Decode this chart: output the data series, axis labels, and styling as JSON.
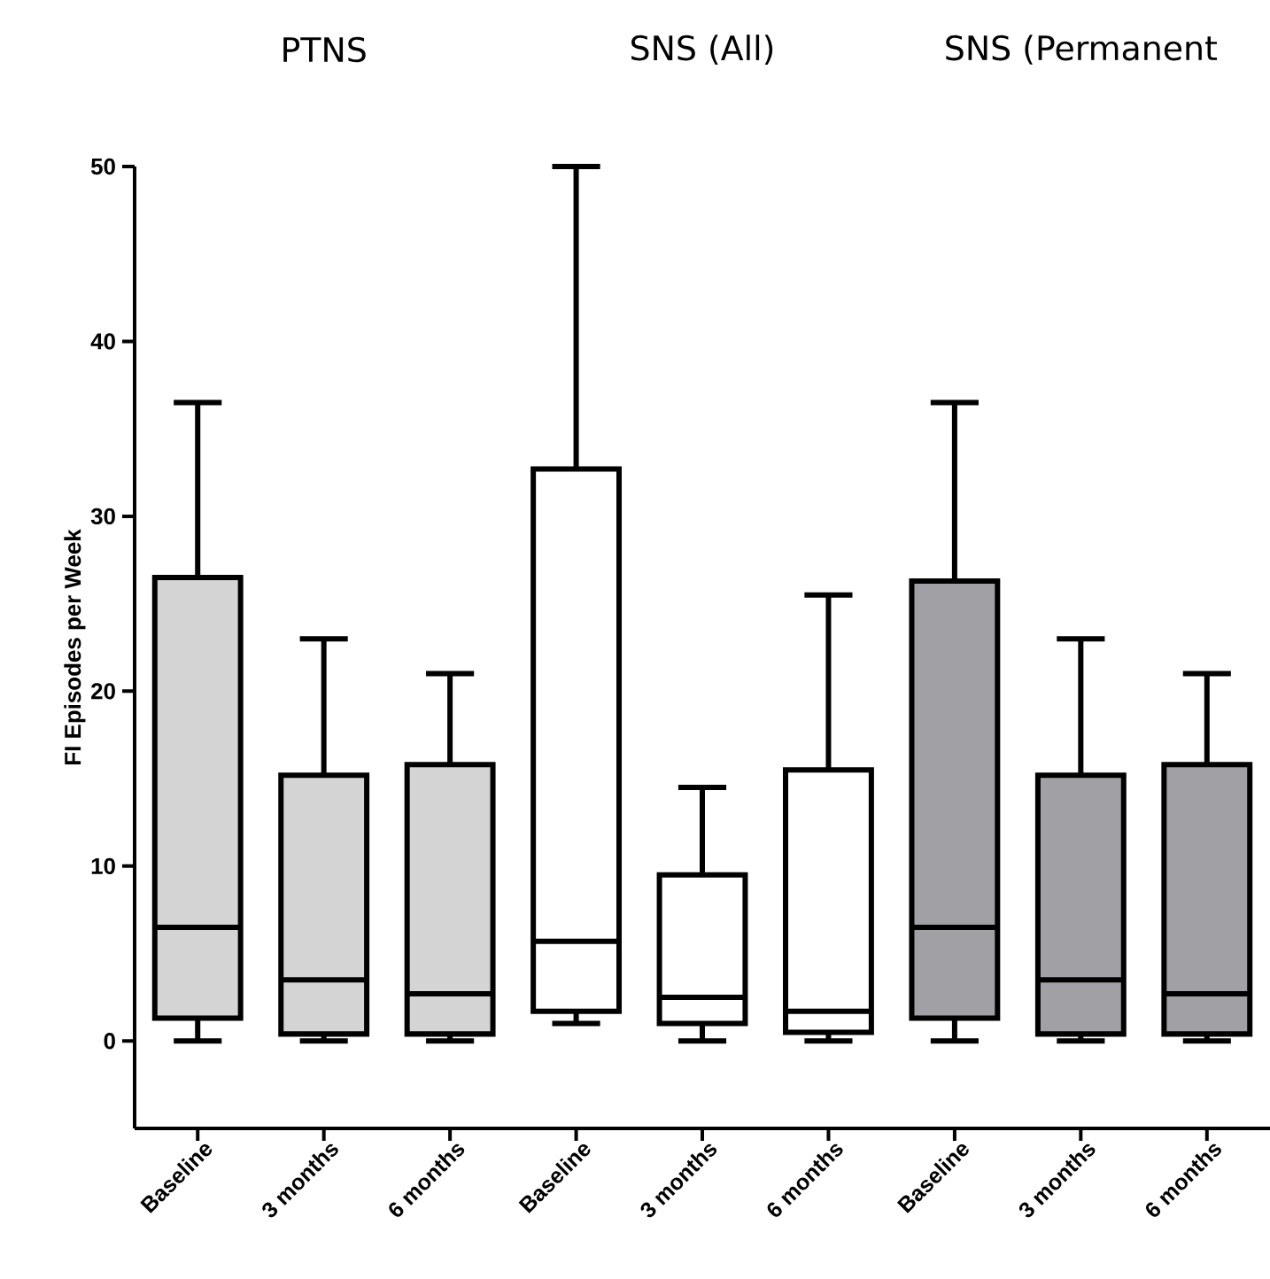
{
  "chart_data": {
    "type": "box",
    "ylabel": "FI Episodes per Week",
    "annotations": [
      "PTNS",
      "SNS (All)",
      "SNS (Permanent"
    ],
    "categories": [
      "Baseline",
      "3 months",
      "6 months",
      "Baseline",
      "3 months",
      "6 months",
      "Baseline",
      "3 months",
      "6 months"
    ],
    "ylim": [
      -5,
      50
    ],
    "yticks": [
      0,
      10,
      20,
      30,
      40,
      50
    ],
    "series": [
      {
        "color": "#d4d4d4",
        "boxes": [
          {
            "low": 0,
            "q1": 1.3,
            "median": 6.5,
            "q3": 26.5,
            "high": 36.5
          },
          {
            "low": 0,
            "q1": 0.4,
            "median": 3.5,
            "q3": 15.2,
            "high": 23
          },
          {
            "low": 0,
            "q1": 0.4,
            "median": 2.7,
            "q3": 15.8,
            "high": 21
          },
          null,
          null,
          null,
          null,
          null,
          null
        ]
      },
      {
        "color": "#ffffff",
        "boxes": [
          null,
          null,
          null,
          {
            "low": 1,
            "q1": 1.7,
            "median": 5.7,
            "q3": 32.7,
            "high": 50
          },
          {
            "low": 0,
            "q1": 1,
            "median": 2.5,
            "q3": 9.5,
            "high": 14.5
          },
          {
            "low": 0,
            "q1": 0.5,
            "median": 1.7,
            "q3": 15.5,
            "high": 25.5
          },
          null,
          null,
          null
        ]
      },
      {
        "color": "#a1a0a5",
        "boxes": [
          null,
          null,
          null,
          null,
          null,
          null,
          {
            "low": 0,
            "q1": 1.3,
            "median": 6.5,
            "q3": 26.3,
            "high": 36.5
          },
          {
            "low": 0,
            "q1": 0.4,
            "median": 3.5,
            "q3": 15.2,
            "high": 23
          },
          {
            "low": 0,
            "q1": 0.4,
            "median": 2.7,
            "q3": 15.8,
            "high": 21
          }
        ]
      }
    ]
  }
}
